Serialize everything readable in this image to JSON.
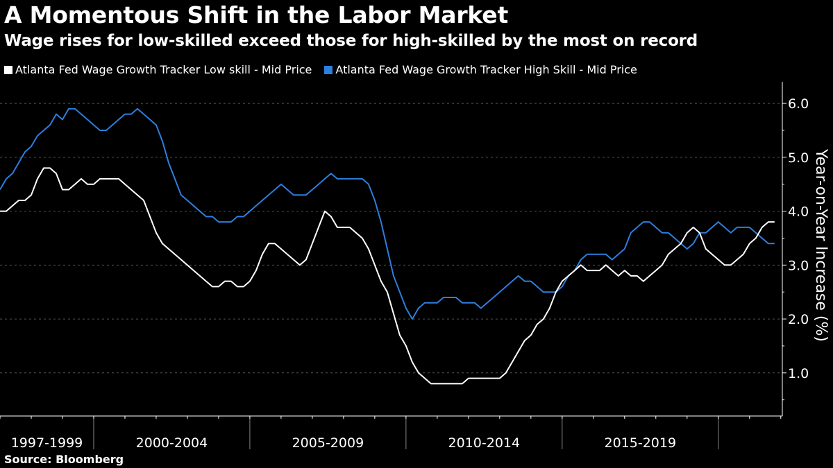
{
  "header": {
    "title": "A Momentous Shift in the Labor Market",
    "subtitle": "Wage rises for low-skilled exceed those for high-skilled by the most on record"
  },
  "footer": {
    "source": "Source: Bloomberg"
  },
  "colors": {
    "background": "#000000",
    "low_skill": "#ffffff",
    "high_skill": "#2d7fdf",
    "grid": "#555555"
  },
  "chart_data": {
    "type": "line",
    "title": "A Momentous Shift in the Labor Market",
    "subtitle": "Wage rises for low-skilled exceed those for high-skilled by the most on record",
    "xlabel": "",
    "ylabel": "Year-on-Year Increase (%)",
    "ylim": [
      0.2,
      6.4
    ],
    "xlim": [
      1997.0,
      2022.05
    ],
    "yticks": [
      {
        "value": 1.0,
        "label": "1.0"
      },
      {
        "value": 2.0,
        "label": "2.0"
      },
      {
        "value": 3.0,
        "label": "3.0"
      },
      {
        "value": 4.0,
        "label": "4.0"
      },
      {
        "value": 5.0,
        "label": "5.0"
      },
      {
        "value": 6.0,
        "label": "6.0"
      }
    ],
    "x_period_boundaries": [
      2000.0,
      2005.0,
      2010.0,
      2015.0,
      2020.0
    ],
    "x_periods": [
      {
        "label": "1997-1999",
        "center": 1998.5
      },
      {
        "label": "2000-2004",
        "center": 2002.5
      },
      {
        "label": "2005-2009",
        "center": 2007.5
      },
      {
        "label": "2010-2014",
        "center": 2012.5
      },
      {
        "label": "2015-2019",
        "center": 2017.5
      }
    ],
    "legend_position": "top-left",
    "grid": true,
    "series": [
      {
        "name": "Atlanta Fed Wage Growth Tracker Low skill - Mid Price",
        "color": "#ffffff",
        "x": [
          1997.0,
          1997.2,
          1997.4,
          1997.6,
          1997.8,
          1998.0,
          1998.2,
          1998.4,
          1998.6,
          1998.8,
          1999.0,
          1999.2,
          1999.4,
          1999.6,
          1999.8,
          2000.0,
          2000.2,
          2000.4,
          2000.6,
          2000.8,
          2001.0,
          2001.2,
          2001.4,
          2001.6,
          2001.8,
          2002.0,
          2002.2,
          2002.4,
          2002.6,
          2002.8,
          2003.0,
          2003.2,
          2003.4,
          2003.6,
          2003.8,
          2004.0,
          2004.2,
          2004.4,
          2004.6,
          2004.8,
          2005.0,
          2005.2,
          2005.4,
          2005.6,
          2005.8,
          2006.0,
          2006.2,
          2006.4,
          2006.6,
          2006.8,
          2007.0,
          2007.2,
          2007.4,
          2007.6,
          2007.8,
          2008.0,
          2008.2,
          2008.4,
          2008.6,
          2008.8,
          2009.0,
          2009.2,
          2009.4,
          2009.6,
          2009.8,
          2010.0,
          2010.2,
          2010.4,
          2010.6,
          2010.8,
          2011.0,
          2011.2,
          2011.4,
          2011.6,
          2011.8,
          2012.0,
          2012.2,
          2012.4,
          2012.6,
          2012.8,
          2013.0,
          2013.2,
          2013.4,
          2013.6,
          2013.8,
          2014.0,
          2014.2,
          2014.4,
          2014.6,
          2014.8,
          2015.0,
          2015.2,
          2015.4,
          2015.6,
          2015.8,
          2016.0,
          2016.2,
          2016.4,
          2016.6,
          2016.8,
          2017.0,
          2017.2,
          2017.4,
          2017.6,
          2017.8,
          2018.0,
          2018.2,
          2018.4,
          2018.6,
          2018.8,
          2019.0,
          2019.2,
          2019.4,
          2019.6,
          2019.8,
          2020.0,
          2020.2,
          2020.4,
          2020.6,
          2020.8,
          2021.0,
          2021.2,
          2021.4,
          2021.6,
          2021.8
        ],
        "values": [
          4.0,
          4.0,
          4.1,
          4.2,
          4.2,
          4.3,
          4.6,
          4.8,
          4.8,
          4.7,
          4.4,
          4.4,
          4.5,
          4.6,
          4.5,
          4.5,
          4.6,
          4.6,
          4.6,
          4.6,
          4.5,
          4.4,
          4.3,
          4.2,
          3.9,
          3.6,
          3.4,
          3.3,
          3.2,
          3.1,
          3.0,
          2.9,
          2.8,
          2.7,
          2.6,
          2.6,
          2.7,
          2.7,
          2.6,
          2.6,
          2.7,
          2.9,
          3.2,
          3.4,
          3.4,
          3.3,
          3.2,
          3.1,
          3.0,
          3.1,
          3.4,
          3.7,
          4.0,
          3.9,
          3.7,
          3.7,
          3.7,
          3.6,
          3.5,
          3.3,
          3.0,
          2.7,
          2.5,
          2.1,
          1.7,
          1.5,
          1.2,
          1.0,
          0.9,
          0.8,
          0.8,
          0.8,
          0.8,
          0.8,
          0.8,
          0.9,
          0.9,
          0.9,
          0.9,
          0.9,
          0.9,
          1.0,
          1.2,
          1.4,
          1.6,
          1.7,
          1.9,
          2.0,
          2.2,
          2.5,
          2.7,
          2.8,
          2.9,
          3.0,
          2.9,
          2.9,
          2.9,
          3.0,
          2.9,
          2.8,
          2.9,
          2.8,
          2.8,
          2.7,
          2.8,
          2.9,
          3.0,
          3.2,
          3.3,
          3.4,
          3.6,
          3.7,
          3.6,
          3.3,
          3.2,
          3.1,
          3.0,
          3.0,
          3.1,
          3.2,
          3.4,
          3.5,
          3.7,
          3.8,
          3.8
        ]
      },
      {
        "name": "Atlanta Fed Wage Growth Tracker High Skill - Mid Price",
        "color": "#2d7fdf",
        "x": [
          1997.0,
          1997.2,
          1997.4,
          1997.6,
          1997.8,
          1998.0,
          1998.2,
          1998.4,
          1998.6,
          1998.8,
          1999.0,
          1999.2,
          1999.4,
          1999.6,
          1999.8,
          2000.0,
          2000.2,
          2000.4,
          2000.6,
          2000.8,
          2001.0,
          2001.2,
          2001.4,
          2001.6,
          2001.8,
          2002.0,
          2002.2,
          2002.4,
          2002.6,
          2002.8,
          2003.0,
          2003.2,
          2003.4,
          2003.6,
          2003.8,
          2004.0,
          2004.2,
          2004.4,
          2004.6,
          2004.8,
          2005.0,
          2005.2,
          2005.4,
          2005.6,
          2005.8,
          2006.0,
          2006.2,
          2006.4,
          2006.6,
          2006.8,
          2007.0,
          2007.2,
          2007.4,
          2007.6,
          2007.8,
          2008.0,
          2008.2,
          2008.4,
          2008.6,
          2008.8,
          2009.0,
          2009.2,
          2009.4,
          2009.6,
          2009.8,
          2010.0,
          2010.2,
          2010.4,
          2010.6,
          2010.8,
          2011.0,
          2011.2,
          2011.4,
          2011.6,
          2011.8,
          2012.0,
          2012.2,
          2012.4,
          2012.6,
          2012.8,
          2013.0,
          2013.2,
          2013.4,
          2013.6,
          2013.8,
          2014.0,
          2014.2,
          2014.4,
          2014.6,
          2014.8,
          2015.0,
          2015.2,
          2015.4,
          2015.6,
          2015.8,
          2016.0,
          2016.2,
          2016.4,
          2016.6,
          2016.8,
          2017.0,
          2017.2,
          2017.4,
          2017.6,
          2017.8,
          2018.0,
          2018.2,
          2018.4,
          2018.6,
          2018.8,
          2019.0,
          2019.2,
          2019.4,
          2019.6,
          2019.8,
          2020.0,
          2020.2,
          2020.4,
          2020.6,
          2020.8,
          2021.0,
          2021.2,
          2021.4,
          2021.6,
          2021.8
        ],
        "values": [
          4.4,
          4.6,
          4.7,
          4.9,
          5.1,
          5.2,
          5.4,
          5.5,
          5.6,
          5.8,
          5.7,
          5.9,
          5.9,
          5.8,
          5.7,
          5.6,
          5.5,
          5.5,
          5.6,
          5.7,
          5.8,
          5.8,
          5.9,
          5.8,
          5.7,
          5.6,
          5.3,
          4.9,
          4.6,
          4.3,
          4.2,
          4.1,
          4.0,
          3.9,
          3.9,
          3.8,
          3.8,
          3.8,
          3.9,
          3.9,
          4.0,
          4.1,
          4.2,
          4.3,
          4.4,
          4.5,
          4.4,
          4.3,
          4.3,
          4.3,
          4.4,
          4.5,
          4.6,
          4.7,
          4.6,
          4.6,
          4.6,
          4.6,
          4.6,
          4.5,
          4.2,
          3.8,
          3.3,
          2.8,
          2.5,
          2.2,
          2.0,
          2.2,
          2.3,
          2.3,
          2.3,
          2.4,
          2.4,
          2.4,
          2.3,
          2.3,
          2.3,
          2.2,
          2.3,
          2.4,
          2.5,
          2.6,
          2.7,
          2.8,
          2.7,
          2.7,
          2.6,
          2.5,
          2.5,
          2.5,
          2.6,
          2.8,
          2.9,
          3.1,
          3.2,
          3.2,
          3.2,
          3.2,
          3.1,
          3.2,
          3.3,
          3.6,
          3.7,
          3.8,
          3.8,
          3.7,
          3.6,
          3.6,
          3.5,
          3.4,
          3.3,
          3.4,
          3.6,
          3.6,
          3.7,
          3.8,
          3.7,
          3.6,
          3.7,
          3.7,
          3.7,
          3.6,
          3.5,
          3.4,
          3.4
        ]
      }
    ]
  }
}
